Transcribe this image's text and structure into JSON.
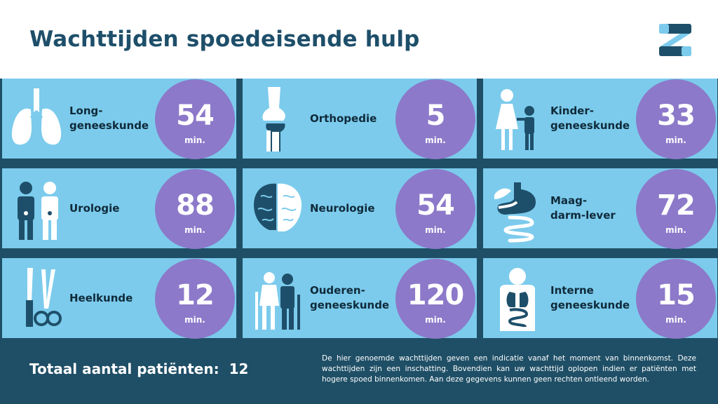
{
  "header": {
    "title": "Wachttijden spoedeisende hulp",
    "logo_icon": "z-logo-icon"
  },
  "colors": {
    "title": "#1e4f6a",
    "band": "#1f4f66",
    "card": "#7ccbec",
    "circle": "#8c79c9",
    "icon_dark": "#1e4f6a",
    "icon_light": "#ffffff",
    "logo_light": "#7ccbec"
  },
  "unit": "min.",
  "departments": [
    {
      "label": "Long-\ngeneeskunde",
      "wait": "54",
      "icon": "lungs-icon"
    },
    {
      "label": "Orthopedie",
      "wait": "5",
      "icon": "knee-joint-icon"
    },
    {
      "label": "Kinder-\ngeneeskunde",
      "wait": "33",
      "icon": "mother-child-icon"
    },
    {
      "label": "Urologie",
      "wait": "88",
      "icon": "urology-figures-icon"
    },
    {
      "label": "Neurologie",
      "wait": "54",
      "icon": "brain-icon"
    },
    {
      "label": "Maag-\ndarm-lever",
      "wait": "72",
      "icon": "stomach-intestines-icon"
    },
    {
      "label": "Heelkunde",
      "wait": "12",
      "icon": "scalpel-scissors-icon"
    },
    {
      "label": "Ouderen-\ngeneeskunde",
      "wait": "120",
      "icon": "elderly-couple-icon"
    },
    {
      "label": "Interne\ngeneeskunde",
      "wait": "15",
      "icon": "internal-organs-icon"
    }
  ],
  "footer": {
    "total_label": "Totaal aantal patiënten:",
    "total_count": "12",
    "disclaimer": "De hier genoemde wachttijden geven een indicatie vanaf het moment van binnenkomst. Deze wachttijden zijn een inschatting. Bovendien kan uw wachttijd oplopen indien er patiënten met hogere spoed binnenkomen. Aan deze gegevens kunnen geen rechten ontleend worden."
  }
}
